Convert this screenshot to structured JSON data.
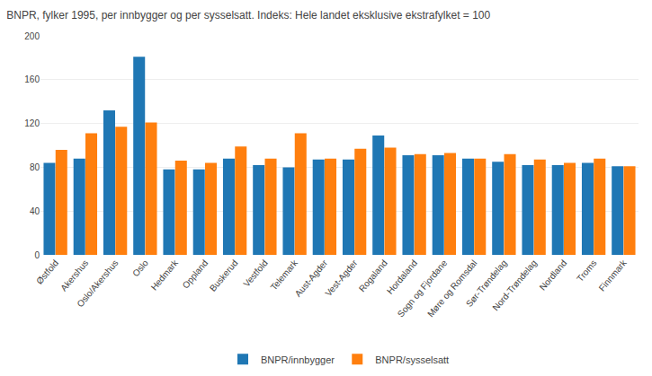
{
  "chart_data": {
    "type": "bar",
    "title": "BNPR, fylker 1995, per innbygger og per sysselsatt. Indeks: Hele landet eksklusive ekstrafylket = 100",
    "categories": [
      "Østfold",
      "Akershus",
      "Oslo/Akershus",
      "Oslo",
      "Hedmark",
      "Oppland",
      "Buskerud",
      "Vestfold",
      "Telemark",
      "Aust-Agder",
      "Vest-Agder",
      "Rogaland",
      "Hordaland",
      "Sogn og Fjordane",
      "Møre og Romsdal",
      "Sør-Trøndelag",
      "Nord-Trøndelag",
      "Nordland",
      "Troms",
      "Finnmark"
    ],
    "series": [
      {
        "name": "BNPR/innbygger",
        "values": [
          84,
          88,
          132,
          181,
          78,
          78,
          88,
          82,
          80,
          87,
          87,
          109,
          91,
          91,
          88,
          85,
          82,
          82,
          84,
          81
        ]
      },
      {
        "name": "BNPR/sysselsatt",
        "values": [
          96,
          111,
          117,
          121,
          86,
          84,
          99,
          88,
          111,
          88,
          97,
          98,
          92,
          93,
          88,
          92,
          87,
          84,
          88,
          81
        ]
      }
    ],
    "ylim": [
      0,
      200
    ],
    "yticks": [
      0,
      40,
      80,
      120,
      160,
      200
    ],
    "grid": true,
    "legend": "bottom"
  }
}
